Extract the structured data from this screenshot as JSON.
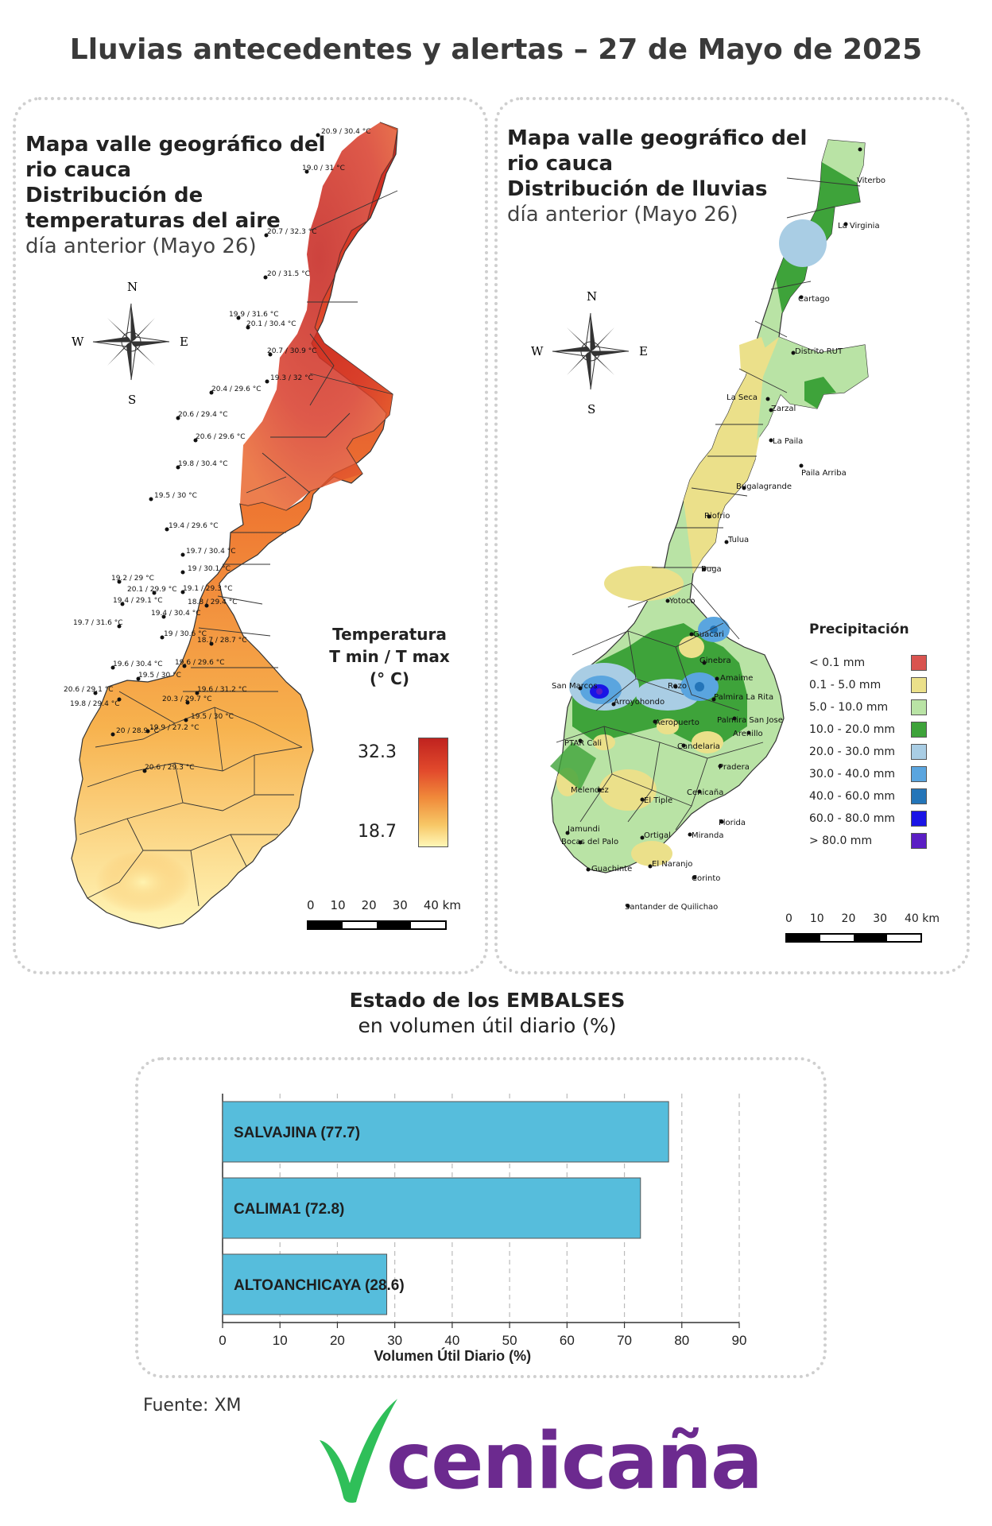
{
  "title": "Lluvias antecedentes y alertas – 27 de Mayo de 2025",
  "temp_map": {
    "title_bold": "Mapa valle geográfico del rio cauca Distribución de temperaturas del aire",
    "title_line1": "Mapa valle geográfico del",
    "title_line2": "rio cauca",
    "title_line3": "Distribución de",
    "title_line4": "temperaturas del aire",
    "subtitle": "día anterior (Mayo 26)",
    "legend_title_1": "Temperatura",
    "legend_title_2": "T min / T max",
    "legend_title_3": "(° C)",
    "legend_max": "32.3",
    "legend_min": "18.7",
    "colors": [
      "#fff7b0",
      "#f6b44a",
      "#ef7a33",
      "#d6382a",
      "#c0231f"
    ],
    "stations": [
      "20.9 / 30.4 °C",
      "19.0 / 31 °C",
      "20.7 / 32.3 °C",
      "20 / 31.5 °C",
      "19.9 / 31.6 °C",
      "20.1 / 30.4 °C",
      "20.7 / 30.9 °C",
      "19.3 / 32 °C",
      "20.4 / 29.6 °C",
      "20.6 / 29.4 °C",
      "20.6 / 29.6 °C",
      "19.8 / 30.4 °C",
      "19.5 / 30 °C",
      "19.4 / 29.6 °C",
      "19.7 / 30.4 °C",
      "19 / 30.1 °C",
      "19.2 / 29 °C",
      "20.1 / 29.9 °C",
      "19.1 / 29.3 °C",
      "19.4 / 29.1 °C",
      "18.8 / 29.4 °C",
      "19.4 / 30.4 °C",
      "19.7 / 31.6 °C",
      "19 / 30.6 °C",
      "18.7 / 28.7 °C",
      "19.6 / 30.4 °C",
      "19.5 / 30 °C",
      "19.6 / 29.6 °C",
      "19.6 / 31.2 °C",
      "20.6 / 29.1 °C",
      "19.8 / 29.4 °C",
      "20.3 / 29.7 °C",
      "19.5 / 30 °C",
      "20 / 28.9 °C",
      "19.9 / 27.2 °C",
      "20.6 / 29.3 °C"
    ]
  },
  "rain_map": {
    "title_line1": "Mapa valle geográfico del",
    "title_line2": "rio cauca",
    "title_line3": "Distribución de lluvias",
    "subtitle": "día anterior (Mayo 26)",
    "legend_title": "Precipitación",
    "legend": [
      {
        "label": "< 0.1 mm",
        "color": "#d9534f"
      },
      {
        "label": "0.1 - 5.0 mm",
        "color": "#ebe08a"
      },
      {
        "label": "5.0 - 10.0 mm",
        "color": "#b9e3a5"
      },
      {
        "label": "10.0 - 20.0 mm",
        "color": "#3ea33a"
      },
      {
        "label": "20.0 - 30.0 mm",
        "color": "#a9cde4"
      },
      {
        "label": "30.0 - 40.0 mm",
        "color": "#5aa5df"
      },
      {
        "label": "40.0 - 60.0 mm",
        "color": "#2475b8"
      },
      {
        "label": "60.0 - 80.0 mm",
        "color": "#1a14e6"
      },
      {
        "label": "> 80.0 mm",
        "color": "#5b1ec4"
      }
    ],
    "places": [
      "Viterbo",
      "La Virginia",
      "Cartago",
      "Distrito RUT",
      "La Seca",
      "Zarzal",
      "La Paila",
      "Paila Arriba",
      "Bugalagrande",
      "Riofrio",
      "Tulua",
      "Buga",
      "Yotoco",
      "Guacari",
      "Ginebra",
      "Amaime",
      "San Marcos",
      "Rozo",
      "Palmira La Rita",
      "Arroyohondo",
      "Palmira San Jose",
      "Aeropuerto",
      "Arenillo",
      "PTAR Cali",
      "Candelaria",
      "Pradera",
      "Melendez",
      "El Tiple",
      "Cenicaña",
      "Florida",
      "Jamundi",
      "Bocas del Palo",
      "Ortigal",
      "Miranda",
      "Guachinte",
      "El Naranjo",
      "Corinto",
      "Santander de Quilichao"
    ]
  },
  "compass": {
    "n": "N",
    "s": "S",
    "e": "E",
    "w": "W"
  },
  "scale": {
    "ticks": [
      "0",
      "10",
      "20",
      "30",
      "40 km"
    ]
  },
  "reservoirs": {
    "title": "Estado de los EMBALSES",
    "subtitle": "en volumen útil diario (%)",
    "color": "#56bddc",
    "chart_data": {
      "type": "bar",
      "orientation": "horizontal",
      "categories": [
        "SALVAJINA",
        "CALIMA1",
        "ALTOANCHICAYA"
      ],
      "values": [
        77.7,
        72.8,
        28.6
      ],
      "bar_labels": [
        "SALVAJINA (77.7)",
        "CALIMA1 (72.8)",
        "ALTOANCHICAYA (28.6)"
      ],
      "xlabel": "Volumen Útil Diario (%)",
      "xlim": [
        0,
        90
      ],
      "xticks": [
        "0",
        "10",
        "20",
        "30",
        "40",
        "50",
        "60",
        "70",
        "80",
        "90"
      ],
      "grid": "vertical dashed"
    }
  },
  "source": "Fuente: XM",
  "logo": {
    "text": "cenicaña",
    "color": "#6c2a8f",
    "mark_color": "#2fbf59"
  }
}
